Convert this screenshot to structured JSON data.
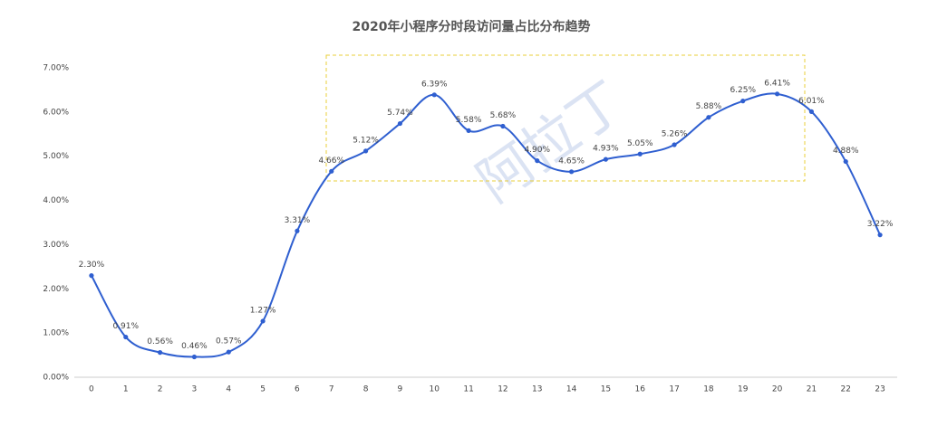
{
  "chart_data": {
    "type": "line",
    "title": "2020年小程序分时段访问量占比分布趋势",
    "watermark": "阿拉丁",
    "categories": [
      "0",
      "1",
      "2",
      "3",
      "4",
      "5",
      "6",
      "7",
      "8",
      "9",
      "10",
      "11",
      "12",
      "13",
      "14",
      "15",
      "16",
      "17",
      "18",
      "19",
      "20",
      "21",
      "22",
      "23"
    ],
    "series": [
      {
        "color": "#2f5fd0",
        "values": [
          2.3,
          0.91,
          0.56,
          0.46,
          0.57,
          1.27,
          3.31,
          4.66,
          5.12,
          5.74,
          6.39,
          5.58,
          5.68,
          4.9,
          4.65,
          4.93,
          5.05,
          5.26,
          5.88,
          6.25,
          6.41,
          6.01,
          4.88,
          3.22
        ],
        "value_labels": [
          "2.30%",
          "0.91%",
          "0.56%",
          "0.46%",
          "0.57%",
          "1.27%",
          "3.31%",
          "4.66%",
          "5.12%",
          "5.74%",
          "6.39%",
          "5.58%",
          "5.68%",
          "4.90%",
          "4.65%",
          "4.93%",
          "5.05%",
          "5.26%",
          "5.88%",
          "6.25%",
          "6.41%",
          "6.01%",
          "4.88%",
          "3.22%"
        ]
      }
    ],
    "ylim": [
      0,
      7
    ],
    "yticks": [
      {
        "value": 0,
        "label": "0.00%"
      },
      {
        "value": 1,
        "label": "1.00%"
      },
      {
        "value": 2,
        "label": "2.00%"
      },
      {
        "value": 3,
        "label": "3.00%"
      },
      {
        "value": 4,
        "label": "4.00%"
      },
      {
        "value": 5,
        "label": "5.00%"
      },
      {
        "value": 6,
        "label": "6.00%"
      },
      {
        "value": 7,
        "label": "7.00%"
      }
    ],
    "grid": false
  }
}
